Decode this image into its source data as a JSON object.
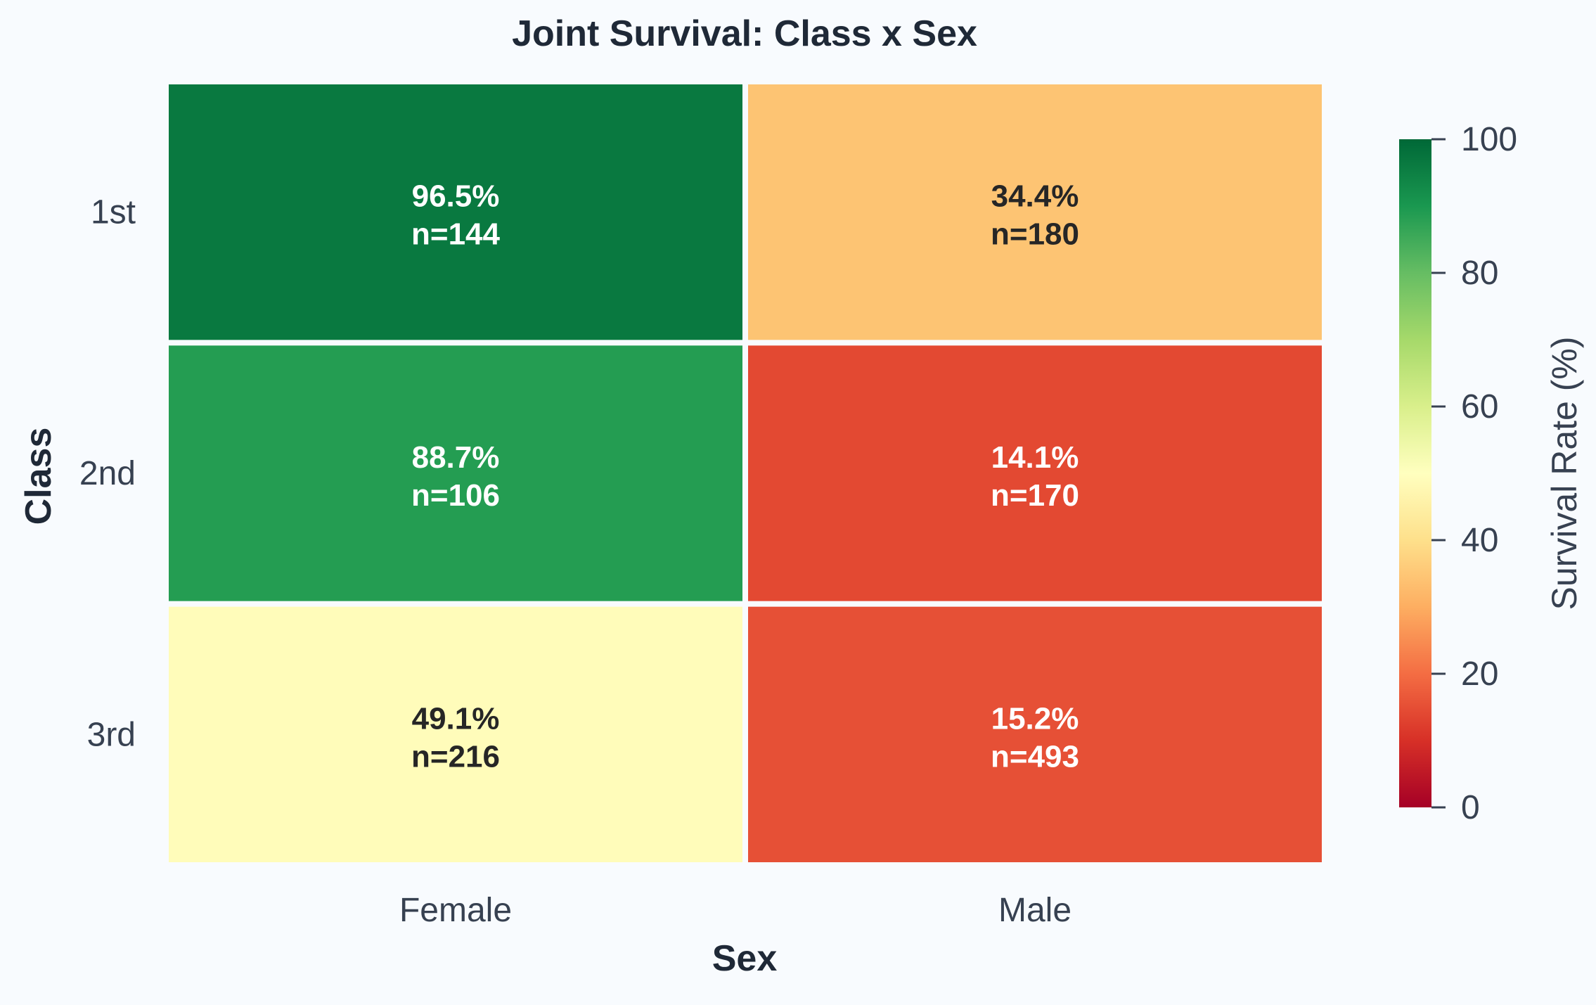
{
  "chart_data": {
    "type": "heatmap",
    "title": "Joint Survival: Class x Sex",
    "xlabel": "Sex",
    "ylabel": "Class",
    "x_categories": [
      "Female",
      "Male"
    ],
    "y_categories": [
      "1st",
      "2nd",
      "3rd"
    ],
    "values": [
      [
        96.5,
        34.4
      ],
      [
        88.7,
        14.1
      ],
      [
        49.1,
        15.2
      ]
    ],
    "counts": [
      [
        144,
        180
      ],
      [
        106,
        170
      ],
      [
        216,
        493
      ]
    ],
    "cell_labels": [
      [
        {
          "pct": "96.5%",
          "n": "n=144"
        },
        {
          "pct": "34.4%",
          "n": "n=180"
        }
      ],
      [
        {
          "pct": "88.7%",
          "n": "n=106"
        },
        {
          "pct": "14.1%",
          "n": "n=170"
        }
      ],
      [
        {
          "pct": "49.1%",
          "n": "n=216"
        },
        {
          "pct": "15.2%",
          "n": "n=493"
        }
      ]
    ],
    "colorbar": {
      "label": "Survival Rate (%)",
      "range": [
        0,
        100
      ],
      "ticks": [
        0,
        20,
        40,
        60,
        80,
        100
      ],
      "tick_labels": [
        "0",
        "20",
        "40",
        "60",
        "80",
        "100"
      ],
      "colormap": "RdYlGn",
      "colors": [
        "#a50026",
        "#d73027",
        "#f46d43",
        "#fdae61",
        "#fee08b",
        "#ffffbf",
        "#d9ef8b",
        "#a6d96a",
        "#66bd63",
        "#1a9850",
        "#006837"
      ]
    },
    "legend": "colorbar-right",
    "grid": false
  }
}
